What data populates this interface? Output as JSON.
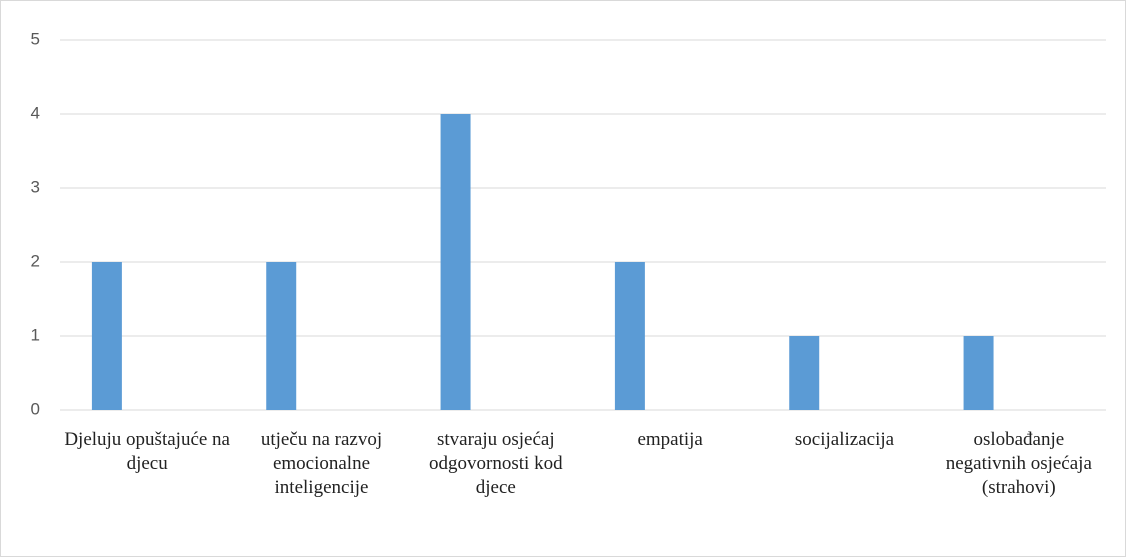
{
  "chart_data": {
    "type": "bar",
    "categories": [
      "Djeluju opuštajuće na djecu",
      "utječu na razvoj emocionalne inteligencije",
      "stvaraju osjećaj odgovornosti kod djece",
      "empatija",
      "socijalizacija",
      "oslobađanje negativnih osjećaja (strahovi)"
    ],
    "values": [
      2,
      2,
      4,
      2,
      1,
      1
    ],
    "color": "#5b9bd5",
    "ylim": [
      0,
      5
    ],
    "yticks": [
      0,
      1,
      2,
      3,
      4,
      5
    ],
    "grid": true
  }
}
